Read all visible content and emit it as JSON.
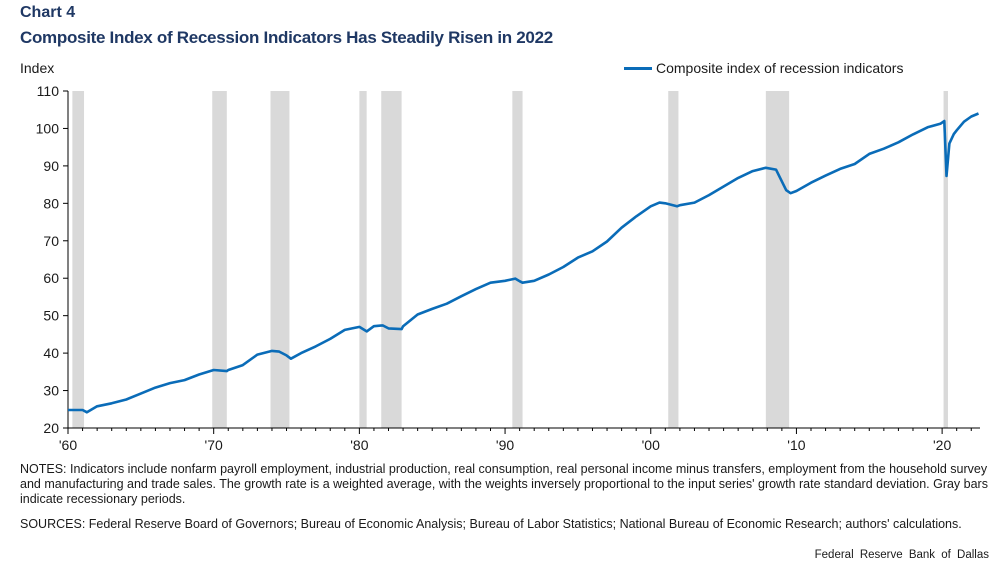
{
  "header": {
    "label": "Chart 4",
    "title": "Composite Index of Recession Indicators Has Steadily Risen in 2022",
    "unit": "Index"
  },
  "footer": {
    "notes": "NOTES: Indicators include nonfarm payroll employment, industrial production, real consumption, real personal income minus transfers, employment from the household survey and manufacturing and trade sales. The growth rate is a weighted average, with the weights inversely proportional to the input series' growth rate standard deviation. Gray bars indicate recessionary periods.",
    "sources": "SOURCES: Federal Reserve Board of Governors; Bureau of Economic Analysis; Bureau of Labor Statistics; National Bureau of Economic Research; authors' calculations.",
    "credit": "Federal Reserve Bank of Dallas"
  },
  "colors": {
    "line": "#0a6cb8",
    "recession": "#d9d9d9",
    "axis": "#000000"
  },
  "chart_data": {
    "type": "line",
    "title": "Composite Index of Recession Indicators Has Steadily Risen in 2022",
    "ylabel": "Index",
    "xlabel": "",
    "ylim": [
      20,
      110
    ],
    "xlim": [
      1960,
      2022.6
    ],
    "yticks": [
      20,
      30,
      40,
      50,
      60,
      70,
      80,
      90,
      100,
      110
    ],
    "xticks": [
      {
        "value": 1960,
        "label": "'60"
      },
      {
        "value": 1970,
        "label": "'70"
      },
      {
        "value": 1980,
        "label": "'80"
      },
      {
        "value": 1990,
        "label": "'90"
      },
      {
        "value": 2000,
        "label": "'00"
      },
      {
        "value": 2010,
        "label": "'10"
      },
      {
        "value": 2020,
        "label": "'20"
      }
    ],
    "grid": false,
    "legend_position": "top-right",
    "recessions": [
      [
        1960.3,
        1961.1
      ],
      [
        1969.9,
        1970.9
      ],
      [
        1973.9,
        1975.2
      ],
      [
        1980.0,
        1980.5
      ],
      [
        1981.5,
        1982.9
      ],
      [
        1990.5,
        1991.2
      ],
      [
        2001.2,
        2001.9
      ],
      [
        2007.9,
        2009.5
      ],
      [
        2020.1,
        2020.4
      ]
    ],
    "series": [
      {
        "name": "Composite index of recession indicators",
        "x": [
          1960,
          1961,
          1961.3,
          1962,
          1963,
          1964,
          1965,
          1966,
          1967,
          1968,
          1969,
          1970,
          1970.9,
          1971,
          1972,
          1973,
          1974,
          1974.5,
          1975,
          1975.3,
          1976,
          1977,
          1978,
          1979,
          1980,
          1980.5,
          1981,
          1981.6,
          1982,
          1982.9,
          1983,
          1984,
          1985,
          1986,
          1987,
          1988,
          1989,
          1990,
          1990.7,
          1991,
          1991.2,
          1992,
          1993,
          1994,
          1995,
          1996,
          1997,
          1998,
          1999,
          2000,
          2000.6,
          2001,
          2001.8,
          2002,
          2003,
          2004,
          2005,
          2006,
          2007,
          2007.9,
          2008.6,
          2009.3,
          2009.6,
          2010,
          2011,
          2012,
          2013,
          2014,
          2015,
          2016,
          2017,
          2018,
          2019,
          2019.9,
          2020.15,
          2020.3,
          2020.5,
          2020.8,
          2021,
          2021.5,
          2022,
          2022.5
        ],
        "values": [
          24.8,
          24.8,
          24.2,
          25.8,
          26.6,
          27.6,
          29.2,
          30.8,
          32.0,
          32.8,
          34.3,
          35.5,
          35.2,
          35.5,
          36.8,
          39.6,
          40.6,
          40.4,
          39.4,
          38.5,
          40.0,
          41.8,
          43.8,
          46.2,
          47.0,
          45.8,
          47.2,
          47.4,
          46.6,
          46.4,
          47.2,
          50.3,
          51.8,
          53.2,
          55.2,
          57.1,
          58.8,
          59.3,
          59.9,
          59.2,
          58.8,
          59.3,
          61.0,
          63.0,
          65.5,
          67.2,
          69.8,
          73.5,
          76.5,
          79.2,
          80.2,
          80.0,
          79.2,
          79.5,
          80.2,
          82.2,
          84.5,
          86.8,
          88.6,
          89.5,
          89.0,
          83.5,
          82.7,
          83.3,
          85.5,
          87.4,
          89.2,
          90.5,
          93.2,
          94.6,
          96.3,
          98.4,
          100.3,
          101.3,
          102.0,
          87.3,
          96.0,
          98.5,
          99.5,
          101.8,
          103.2,
          104.0
        ]
      }
    ]
  }
}
